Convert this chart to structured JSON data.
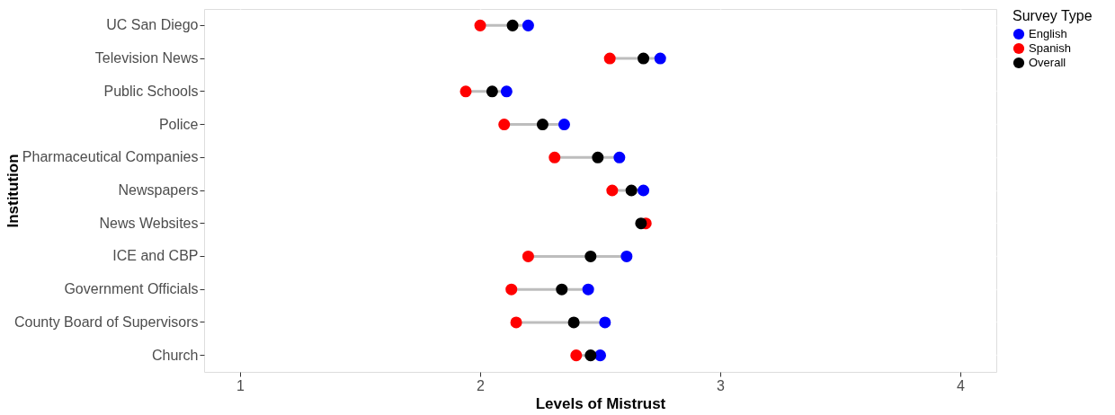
{
  "chart_data": {
    "type": "scatter",
    "xlabel": "Levels of Mistrust",
    "ylabel": "Institution",
    "legend_title": "Survey Type",
    "categories": [
      "UC San Diego",
      "Television News",
      "Public Schools",
      "Police",
      "Pharmaceutical Companies",
      "Newspapers",
      "News Websites",
      "ICE and CBP",
      "Government Officials",
      "County Board of Supervisors",
      "Church"
    ],
    "series": [
      {
        "name": "English",
        "color": "#0000ff",
        "values": [
          2.2,
          2.75,
          2.11,
          2.35,
          2.58,
          2.68,
          null,
          2.61,
          2.45,
          2.52,
          2.5
        ]
      },
      {
        "name": "Spanish",
        "color": "#ff0000",
        "values": [
          2.0,
          2.54,
          1.94,
          2.1,
          2.31,
          2.55,
          2.69,
          2.2,
          2.13,
          2.15,
          2.4
        ]
      },
      {
        "name": "Overall",
        "color": "#000000",
        "values": [
          2.135,
          2.68,
          2.05,
          2.26,
          2.49,
          2.63,
          2.67,
          2.46,
          2.34,
          2.39,
          2.46
        ]
      }
    ],
    "orientation": "horizontal",
    "xlim": [
      0.85,
      4.15
    ],
    "xticks": [
      1,
      2,
      3,
      4
    ],
    "grid": true,
    "legend": "right",
    "marker": "circle"
  }
}
